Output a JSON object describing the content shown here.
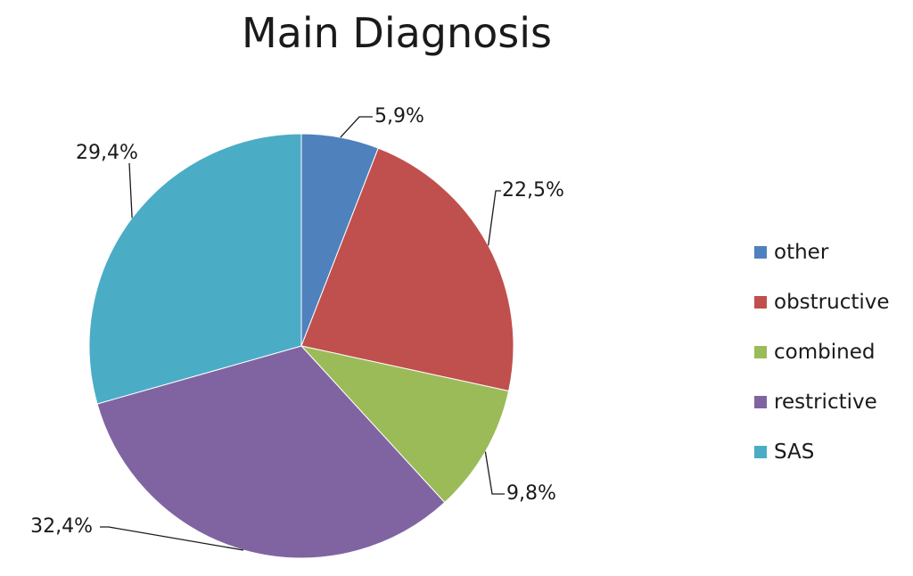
{
  "chart_data": {
    "type": "pie",
    "title": "Main Diagnosis",
    "categories": [
      "other",
      "obstructive",
      "combined",
      "restrictive",
      "SAS"
    ],
    "values": [
      5.9,
      22.5,
      9.8,
      32.4,
      29.4
    ],
    "data_labels": [
      "5,9%",
      "22,5%",
      "9,8%",
      "32,4%",
      "29,4%"
    ],
    "colors": [
      "#4F81BD",
      "#C0504D",
      "#9BBB59",
      "#8064A2",
      "#4BACC6"
    ],
    "start_angle": "top (12 o'clock), clockwise",
    "legend_position": "right",
    "label_style": "outside with leader lines"
  }
}
